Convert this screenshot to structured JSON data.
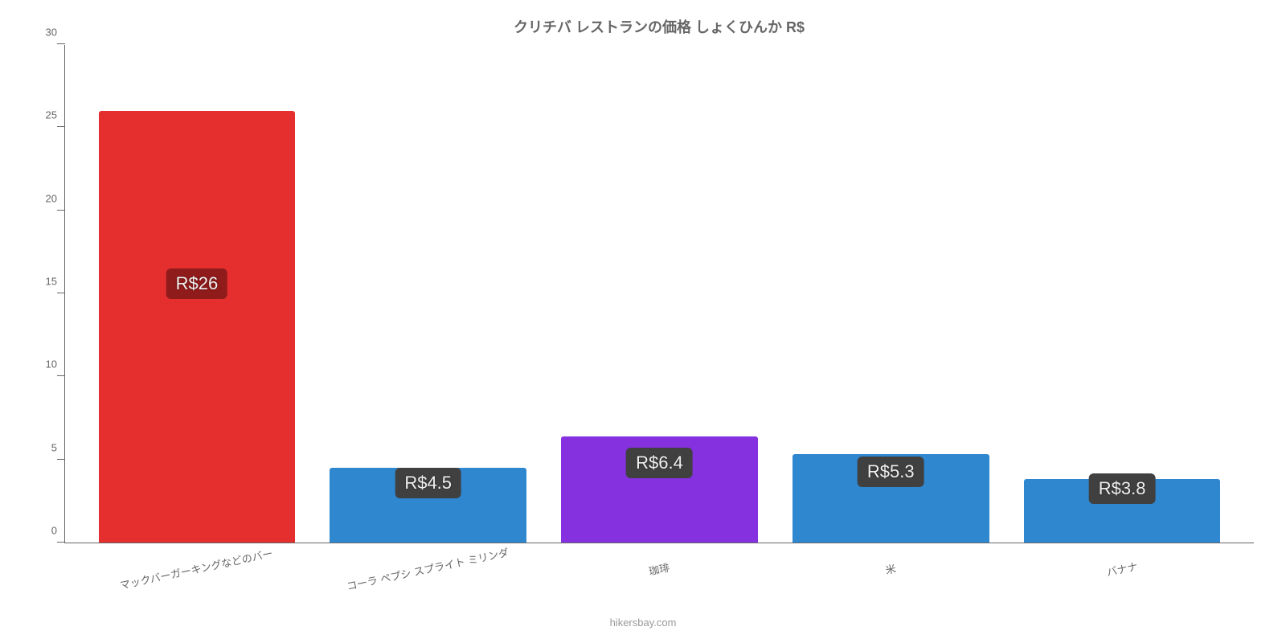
{
  "chart": {
    "type": "bar",
    "title": "クリチバ レストランの価格 しょくひんか R$",
    "title_fontsize": 18,
    "title_color": "#666666",
    "background_color": "#ffffff",
    "axis_color": "#666666",
    "ylim": [
      0,
      30
    ],
    "ytick_step": 5,
    "yticks": [
      0,
      5,
      10,
      15,
      20,
      25,
      30
    ],
    "bar_width_pct": 85,
    "label_fontsize": 13,
    "value_label_fontsize": 22,
    "categories": [
      "マックバーガーキングなどのバー",
      "コーラ ペプシ スプライト ミリンダ",
      "珈琲",
      "米",
      "バナナ"
    ],
    "values": [
      26,
      4.5,
      6.4,
      5.3,
      3.8
    ],
    "value_labels": [
      "R$26",
      "R$4.5",
      "R$6.4",
      "R$5.3",
      "R$3.8"
    ],
    "bar_colors": [
      "#e52f2f",
      "#2f87d0",
      "#8531e0",
      "#2f87d0",
      "#2f87d0"
    ],
    "badge_bg_colors": [
      "#8f1b1b",
      "#404040",
      "#404040",
      "#404040",
      "#404040"
    ],
    "badge_top_pct": [
      40,
      20,
      25,
      20,
      15
    ],
    "x_label_rotation_deg": -12,
    "source": "hikersbay.com"
  }
}
